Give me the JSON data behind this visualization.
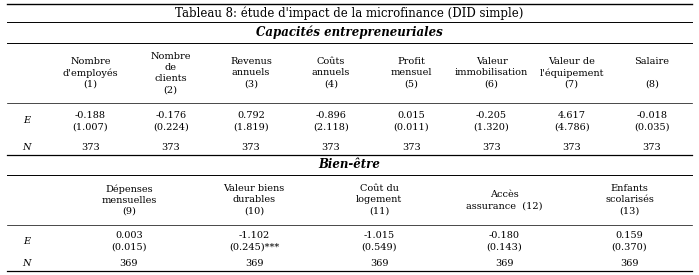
{
  "title": "Tableau 8: étude d'impact de la microfinance (DID simple)",
  "section1_title": "Capacités entrepreneuriales",
  "section2_title": "Bien-être",
  "col_headers_1": [
    "Nombre\nd'employés\n(1)",
    "Nombre\nde\nclients\n(2)",
    "Revenus\nannuels\n(3)",
    "Coûts\nannuels\n(4)",
    "Profit\nmensuel\n(5)",
    "Valeur\nimmobilisation\n(6)",
    "Valeur de\nl'équipement\n(7)",
    "Salaire\n\n(8)"
  ],
  "col_headers_2": [
    "Dépenses\nmensuelles\n(9)",
    "Valeur biens\ndurables\n(10)",
    "Coût du\nlogement\n(11)",
    "Accès\nassurance  (12)",
    "Enfants\nscolarisés\n(13)"
  ],
  "data_E_1": [
    "-0.188\n(1.007)",
    "-0.176\n(0.224)",
    "0.792\n(1.819)",
    "-0.896\n(2.118)",
    "0.015\n(0.011)",
    "-0.205\n(1.320)",
    "4.617\n(4.786)",
    "-0.018\n(0.035)"
  ],
  "data_N_1": [
    "373",
    "373",
    "373",
    "373",
    "373",
    "373",
    "373",
    "373"
  ],
  "data_E_2": [
    "0.003\n(0.015)",
    "-1.102\n(0.245)***",
    "-1.015\n(0.549)",
    "-0.180\n(0.143)",
    "0.159\n(0.370)"
  ],
  "data_N_2": [
    "369",
    "369",
    "369",
    "369",
    "369"
  ],
  "bg_color": "#ffffff",
  "text_color": "#000000",
  "fontsize": 7.0,
  "title_fontsize": 8.5
}
